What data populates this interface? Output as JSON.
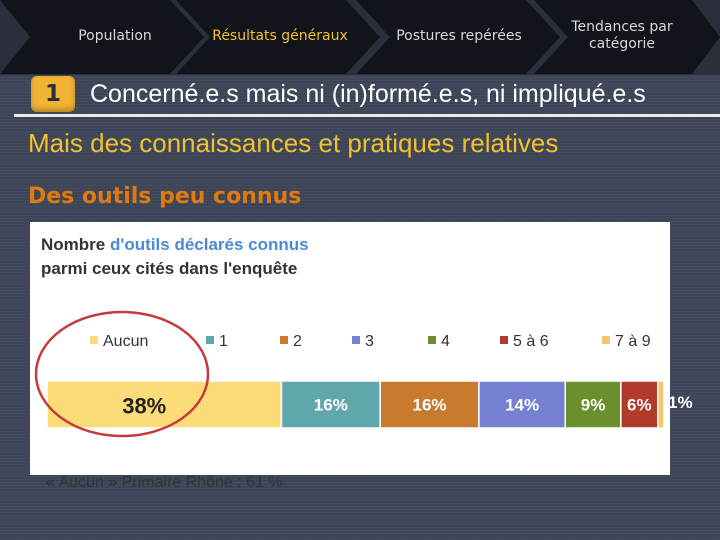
{
  "nav": {
    "steps": [
      {
        "label": "Population",
        "active": false
      },
      {
        "label": "Résultats généraux",
        "active": true
      },
      {
        "label": "Postures repérées",
        "active": false
      },
      {
        "label": "Tendances par catégorie",
        "active": false
      }
    ]
  },
  "section": {
    "number": "1",
    "title": "Concerné.e.s mais ni (in)formé.e.s, ni impliqué.e.s"
  },
  "heading1": "Mais des connaissances et pratiques relatives",
  "heading2": "Des outils peu connus",
  "chart_title": {
    "part1": "Nombre ",
    "part2": "d'outils déclarés connus",
    "part3": "parmi ceux cités dans l'enquête"
  },
  "chart_data": {
    "type": "bar",
    "stacked": true,
    "orientation": "horizontal",
    "percent": true,
    "legend_position": "top",
    "series": [
      {
        "name": "Aucun",
        "value": 38,
        "label": "38%",
        "color": "#fbdc78"
      },
      {
        "name": "1",
        "value": 16,
        "label": "16%",
        "color": "#5fa7ab"
      },
      {
        "name": "2",
        "value": 16,
        "label": "16%",
        "color": "#c87a2f"
      },
      {
        "name": "3",
        "value": 14,
        "label": "14%",
        "color": "#7580d0"
      },
      {
        "name": "4",
        "value": 9,
        "label": "9%",
        "color": "#6b8f2c"
      },
      {
        "name": "5 à 6",
        "value": 6,
        "label": "6%",
        "color": "#b23a2b"
      },
      {
        "name": "7 à 9",
        "value": 1,
        "label": "1%",
        "color": "#f3c76f"
      }
    ]
  },
  "note": "« Aucun » Primaire Rhône : 61 %"
}
